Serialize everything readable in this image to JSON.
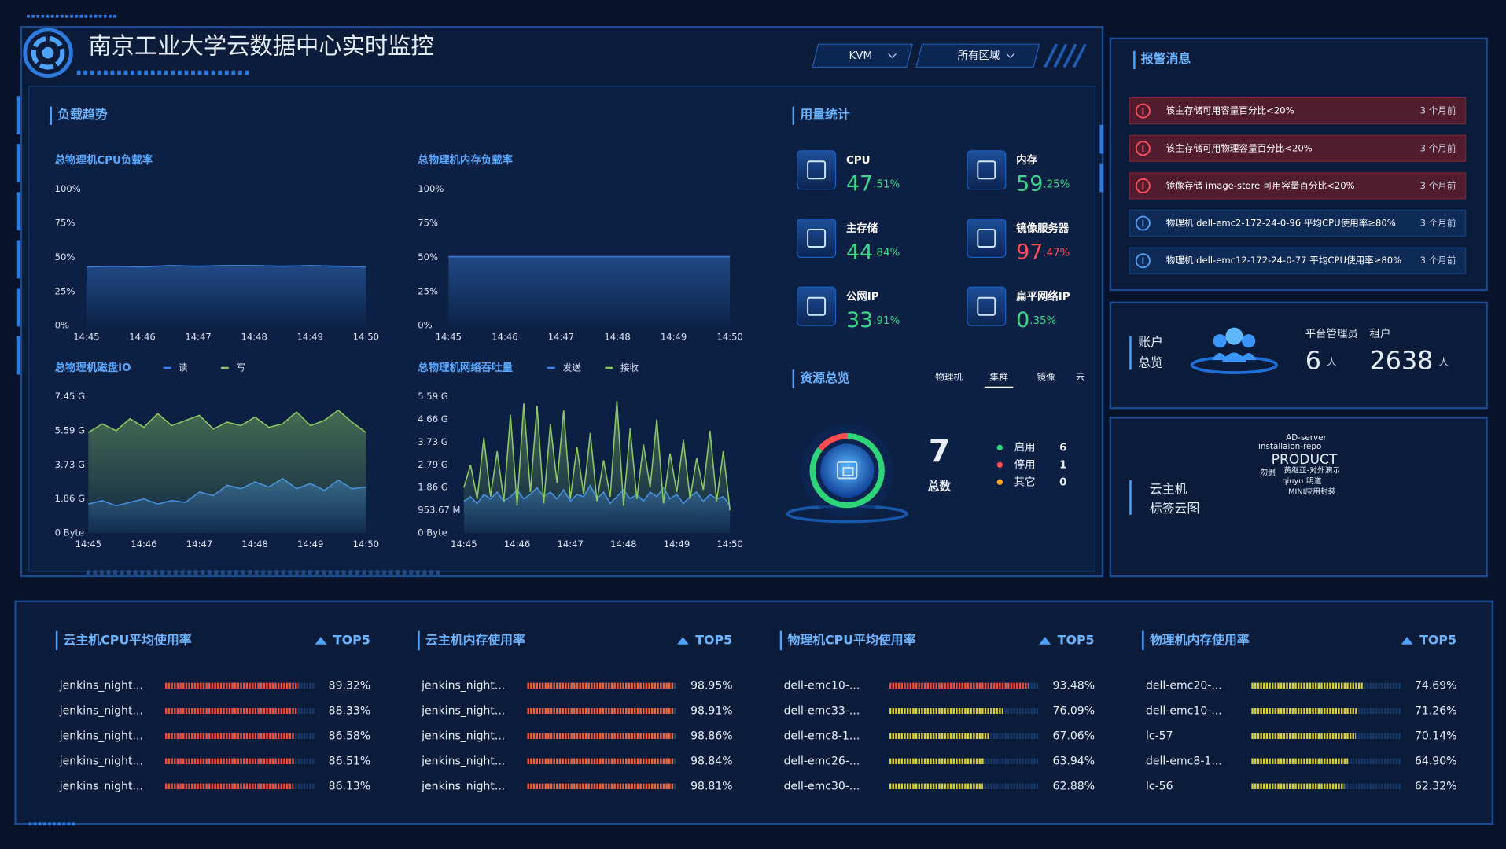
{
  "header": {
    "title": "南京工业大学云数据中心实时监控",
    "filters": [
      "KVM",
      "所有区域"
    ]
  },
  "load_trend": {
    "title": "负载趋势",
    "charts": [
      {
        "type": "area",
        "title": "总物理机CPU负载率",
        "x": [
          45,
          45.5,
          46,
          46.5,
          47,
          47.5,
          48,
          48.5,
          49,
          49.5,
          50
        ],
        "xlim": [
          45,
          50
        ],
        "xticks": [
          {
            "value": 45,
            "label": "14:45"
          },
          {
            "value": 46,
            "label": "14:46"
          },
          {
            "value": 47,
            "label": "14:47"
          },
          {
            "value": 48,
            "label": "14:48"
          },
          {
            "value": 49,
            "label": "14:49"
          },
          {
            "value": 50,
            "label": "14:50"
          }
        ],
        "ylim": [
          0,
          100
        ],
        "yticks": [
          {
            "value": 0,
            "label": "0%"
          },
          {
            "value": 25,
            "label": "25%"
          },
          {
            "value": 50,
            "label": "50%"
          },
          {
            "value": 75,
            "label": "75%"
          },
          {
            "value": 100,
            "label": "100%"
          }
        ],
        "grid": false,
        "series": [
          {
            "color": "#3a7bd5",
            "values": [
              43,
              43.5,
              43,
              44,
              43.5,
              44,
              44,
              43.5,
              44,
              43.5,
              43
            ]
          }
        ]
      },
      {
        "type": "area",
        "title": "总物理机内存负载率",
        "x": [
          45,
          45.5,
          46,
          46.5,
          47,
          47.5,
          48,
          48.5,
          49,
          49.5,
          50
        ],
        "xlim": [
          45,
          50
        ],
        "xticks": [
          {
            "value": 45,
            "label": "14:45"
          },
          {
            "value": 46,
            "label": "14:46"
          },
          {
            "value": 47,
            "label": "14:47"
          },
          {
            "value": 48,
            "label": "14:48"
          },
          {
            "value": 49,
            "label": "14:49"
          },
          {
            "value": 50,
            "label": "14:50"
          }
        ],
        "ylim": [
          0,
          100
        ],
        "yticks": [
          {
            "value": 0,
            "label": "0%"
          },
          {
            "value": 25,
            "label": "25%"
          },
          {
            "value": 50,
            "label": "50%"
          },
          {
            "value": 75,
            "label": "75%"
          },
          {
            "value": 100,
            "label": "100%"
          }
        ],
        "grid": false,
        "series": [
          {
            "color": "#3a7bd5",
            "values": [
              50.5,
              50.5,
              50.5,
              50.5,
              50.5,
              50.5,
              50.5,
              50.5,
              50.5,
              50.5,
              50.5
            ]
          }
        ]
      },
      {
        "type": "area",
        "title": "总物理机磁盘IO",
        "x": [
          45,
          45.25,
          45.5,
          45.75,
          46,
          46.25,
          46.5,
          46.75,
          47,
          47.25,
          47.5,
          47.75,
          48,
          48.25,
          48.5,
          48.75,
          49,
          49.25,
          49.5,
          49.75,
          50
        ],
        "xlim": [
          45,
          50
        ],
        "xticks": [
          {
            "value": 45,
            "label": "14:45"
          },
          {
            "value": 46,
            "label": "14:46"
          },
          {
            "value": 47,
            "label": "14:47"
          },
          {
            "value": 48,
            "label": "14:48"
          },
          {
            "value": 49,
            "label": "14:49"
          },
          {
            "value": 50,
            "label": "14:50"
          }
        ],
        "ylim": [
          0,
          8000000000
        ],
        "yticks": [
          {
            "value": 0,
            "label": "0 Byte"
          },
          {
            "value": 2000000000,
            "label": "1.86 G"
          },
          {
            "value": 4000000000,
            "label": "3.73 G"
          },
          {
            "value": 6000000000,
            "label": "5.59 G"
          },
          {
            "value": 8000000000,
            "label": "7.45 G"
          }
        ],
        "grid": false,
        "series": [
          {
            "name": "读",
            "color": "#3b86f0",
            "values": [
              1700000000.0,
              1900000000.0,
              1600000000.0,
              1800000000.0,
              2000000000.0,
              1700000000.0,
              1900000000.0,
              1800000000.0,
              2400000000.0,
              2200000000.0,
              2800000000.0,
              2600000000.0,
              3000000000.0,
              2700000000.0,
              3200000000.0,
              2600000000.0,
              2900000000.0,
              2500000000.0,
              3100000000.0,
              2600000000.0,
              2700000000.0
            ]
          },
          {
            "name": "写",
            "color": "#8cc665",
            "values": [
              5900000000.0,
              6400000000.0,
              6000000000.0,
              6700000000.0,
              6200000000.0,
              7000000000.0,
              6300000000.0,
              6600000000.0,
              6900000000.0,
              6100000000.0,
              6500000000.0,
              6300000000.0,
              6800000000.0,
              6200000000.0,
              6400000000.0,
              7100000000.0,
              6300000000.0,
              6600000000.0,
              7200000000.0,
              6500000000.0,
              5900000000.0
            ]
          }
        ]
      },
      {
        "type": "area",
        "title": "总物理机网络吞吐量",
        "x": [
          45,
          45.125,
          45.25,
          45.375,
          45.5,
          45.625,
          45.75,
          45.875,
          46,
          46.125,
          46.25,
          46.375,
          46.5,
          46.625,
          46.75,
          46.875,
          47,
          47.125,
          47.25,
          47.375,
          47.5,
          47.625,
          47.75,
          47.875,
          48,
          48.125,
          48.25,
          48.375,
          48.5,
          48.625,
          48.75,
          48.875,
          49,
          49.125,
          49.25,
          49.375,
          49.5,
          49.625,
          49.75,
          49.875,
          50
        ],
        "xlim": [
          45,
          50
        ],
        "xticks": [
          {
            "value": 45,
            "label": "14:45"
          },
          {
            "value": 46,
            "label": "14:46"
          },
          {
            "value": 47,
            "label": "14:47"
          },
          {
            "value": 48,
            "label": "14:48"
          },
          {
            "value": 49,
            "label": "14:49"
          },
          {
            "value": 50,
            "label": "14:50"
          }
        ],
        "ylim": [
          0,
          6000000000
        ],
        "yticks": [
          {
            "value": 0,
            "label": "0 Byte"
          },
          {
            "value": 1000000000,
            "label": "953.67 M"
          },
          {
            "value": 2000000000,
            "label": "1.86 G"
          },
          {
            "value": 3000000000,
            "label": "2.79 G"
          },
          {
            "value": 4000000000,
            "label": "3.73 G"
          },
          {
            "value": 5000000000,
            "label": "4.66 G"
          },
          {
            "value": 6000000000,
            "label": "5.59 G"
          }
        ],
        "grid": false,
        "series": [
          {
            "name": "发送",
            "color": "#3b86f0",
            "values": [
              1400000000.0,
              1600000000.0,
              1300000000.0,
              1700000000.0,
              1500000000.0,
              1800000000.0,
              1400000000.0,
              1600000000.0,
              1900000000.0,
              1500000000.0,
              1700000000.0,
              2000000000.0,
              1600000000.0,
              1800000000.0,
              1500000000.0,
              1900000000.0,
              1400000000.0,
              1700000000.0,
              1600000000.0,
              2100000000.0,
              1500000000.0,
              1800000000.0,
              1300000000.0,
              1600000000.0,
              1900000000.0,
              1500000000.0,
              1700000000.0,
              1400000000.0,
              1800000000.0,
              1600000000.0,
              2000000000.0,
              1500000000.0,
              1700000000.0,
              1300000000.0,
              1600000000.0,
              1800000000.0,
              1400000000.0,
              1700000000.0,
              1500000000.0,
              1600000000.0,
              1200000000.0
            ]
          },
          {
            "name": "接收",
            "color": "#8cc665",
            "values": [
              2000000000.0,
              3000000000.0,
              1500000000.0,
              4200000000.0,
              1600000000.0,
              3600000000.0,
              1400000000.0,
              5200000000.0,
              1200000000.0,
              5700000000.0,
              1800000000.0,
              5600000000.0,
              1300000000.0,
              4800000000.0,
              2200000000.0,
              5400000000.0,
              1500000000.0,
              3800000000.0,
              1700000000.0,
              4400000000.0,
              1400000000.0,
              3200000000.0,
              1600000000.0,
              5800000000.0,
              1200000000.0,
              4600000000.0,
              1500000000.0,
              3900000000.0,
              2000000000.0,
              5000000000.0,
              1300000000.0,
              3500000000.0,
              1800000000.0,
              4100000000.0,
              1500000000.0,
              3300000000.0,
              1900000000.0,
              4500000000.0,
              1400000000.0,
              3600000000.0,
              1000000000.0
            ]
          }
        ]
      }
    ]
  },
  "usage": {
    "title": "用量统计",
    "items": [
      {
        "name": "CPU",
        "value": "47",
        "fraction": ".51%",
        "color": "#3ad68a"
      },
      {
        "name": "内存",
        "value": "59",
        "fraction": ".25%",
        "color": "#3ad68a"
      },
      {
        "name": "主存储",
        "value": "44",
        "fraction": ".84%",
        "color": "#3ad68a"
      },
      {
        "name": "镜像服务器",
        "value": "97",
        "fraction": ".47%",
        "color": "#ff4d5a"
      },
      {
        "name": "公网IP",
        "value": "33",
        "fraction": ".91%",
        "color": "#3ad68a"
      },
      {
        "name": "扁平网络IP",
        "value": "0",
        "fraction": ".35%",
        "color": "#3ad68a"
      }
    ]
  },
  "resources": {
    "title": "资源总览",
    "tabs": [
      "物理机",
      "集群",
      "镜像",
      "云"
    ],
    "active_tab": 1,
    "chart_data": {
      "type": "pie",
      "total": 7,
      "total_label": "总数",
      "categories": [
        "启用",
        "停用",
        "其它"
      ],
      "values": [
        6,
        1,
        0
      ],
      "colors": [
        "#2ed47a",
        "#ff4d4f",
        "#f5a623"
      ]
    }
  },
  "alerts": {
    "title": "报警消息",
    "items": [
      {
        "level": "error",
        "text": "该主存储可用容量百分比<20%",
        "time": "3 个月前"
      },
      {
        "level": "error",
        "text": "该主存储可用物理容量百分比<20%",
        "time": "3 个月前"
      },
      {
        "level": "error",
        "text": "镜像存储 image-store 可用容量百分比<20%",
        "time": "3 个月前"
      },
      {
        "level": "info",
        "text": "物理机 dell-emc2-172-24-0-96 平均CPU使用率≥80%",
        "time": "3 个月前"
      },
      {
        "level": "info",
        "text": "物理机 dell-emc12-172-24-0-77 平均CPU使用率≥80%",
        "time": "3 个月前"
      }
    ]
  },
  "account": {
    "title": [
      "账户",
      "总览"
    ],
    "stats": [
      {
        "label": "平台管理员",
        "value": 6,
        "unit": "人"
      },
      {
        "label": "租户",
        "value": 2638,
        "unit": "人"
      }
    ]
  },
  "tag_cloud": {
    "title": [
      "云主机",
      "标签云图"
    ],
    "tags": [
      "AD-server",
      "installaion-repo",
      "PRODUCT",
      "勿删",
      "黄继亚-对外演示",
      "qiuyu",
      "明道",
      "MINI应用封装"
    ]
  },
  "top5": {
    "panels": [
      {
        "type": "bar",
        "title": "云主机CPU平均使用率",
        "badge": "TOP5",
        "xlim": [
          0,
          100
        ],
        "categories": [
          "jenkins_night...",
          "jenkins_night...",
          "jenkins_night...",
          "jenkins_night...",
          "jenkins_night..."
        ],
        "values": [
          89.32,
          88.33,
          86.58,
          86.51,
          86.13
        ],
        "value_labels": [
          "89.32%",
          "88.33%",
          "86.58%",
          "86.51%",
          "86.13%"
        ],
        "colors": [
          "#ee4d3a",
          "#ee4d3a",
          "#ee4d3a",
          "#ee4d3a",
          "#ee4d3a"
        ]
      },
      {
        "type": "bar",
        "title": "云主机内存使用率",
        "badge": "TOP5",
        "xlim": [
          0,
          100
        ],
        "categories": [
          "jenkins_night...",
          "jenkins_night...",
          "jenkins_night...",
          "jenkins_night...",
          "jenkins_night..."
        ],
        "values": [
          98.95,
          98.91,
          98.86,
          98.84,
          98.81
        ],
        "value_labels": [
          "98.95%",
          "98.91%",
          "98.86%",
          "98.84%",
          "98.81%"
        ],
        "colors": [
          "#f0623a",
          "#f0623a",
          "#f0623a",
          "#f0623a",
          "#f0623a"
        ]
      },
      {
        "type": "bar",
        "title": "物理机CPU平均使用率",
        "badge": "TOP5",
        "xlim": [
          0,
          100
        ],
        "categories": [
          "dell-emc10-...",
          "dell-emc33-...",
          "dell-emc8-1...",
          "dell-emc26-...",
          "dell-emc30-..."
        ],
        "values": [
          93.48,
          76.09,
          67.06,
          63.94,
          62.88
        ],
        "value_labels": [
          "93.48%",
          "76.09%",
          "67.06%",
          "63.94%",
          "62.88%"
        ],
        "colors": [
          "#ee4d3a",
          "#d8cf34",
          "#d8cf34",
          "#d8cf34",
          "#d8cf34"
        ]
      },
      {
        "type": "bar",
        "title": "物理机内存使用率",
        "badge": "TOP5",
        "xlim": [
          0,
          100
        ],
        "categories": [
          "dell-emc20-...",
          "dell-emc10-...",
          "lc-57",
          "dell-emc8-1...",
          "lc-56"
        ],
        "values": [
          74.69,
          71.26,
          70.14,
          64.9,
          62.32
        ],
        "value_labels": [
          "74.69%",
          "71.26%",
          "70.14%",
          "64.90%",
          "62.32%"
        ],
        "colors": [
          "#d8cf34",
          "#d8cf34",
          "#d8cf34",
          "#d8cf34",
          "#d8cf34"
        ]
      }
    ]
  }
}
